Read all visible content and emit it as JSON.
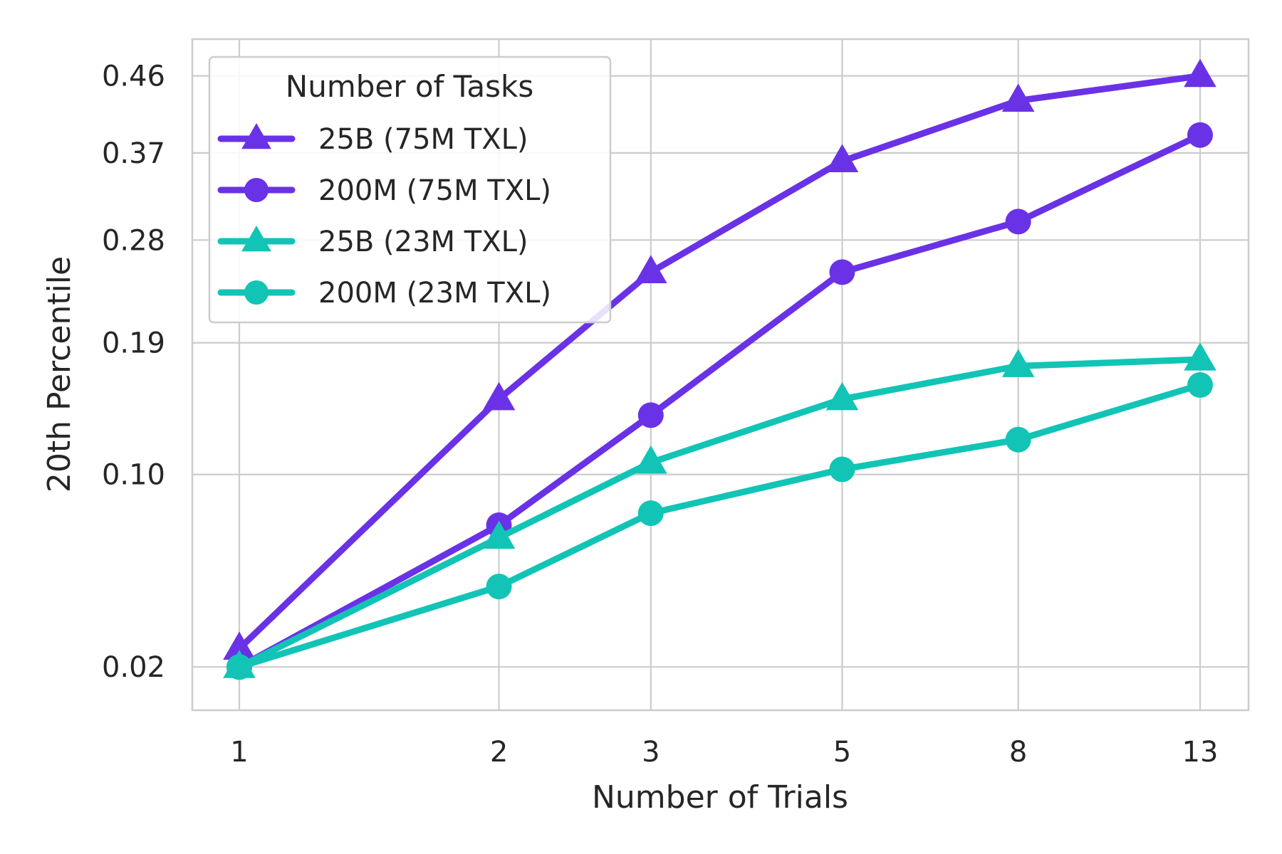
{
  "chart_data": {
    "type": "line",
    "xlabel": "Number of Trials",
    "ylabel": "20th Percentile",
    "x": [
      1,
      2,
      3,
      5,
      8,
      13
    ],
    "x_scale": "log",
    "xticks": [
      "1",
      "2",
      "3",
      "5",
      "8",
      "13"
    ],
    "yticks": [
      "0.02",
      "0.10",
      "0.19",
      "0.28",
      "0.37",
      "0.46"
    ],
    "y_scale": "sqrt",
    "ylim": [
      0.0,
      0.48
    ],
    "grid": true,
    "legend": {
      "title": "Number of Tasks",
      "placement": "top-left"
    },
    "series": [
      {
        "name": "25B (75M TXL)",
        "marker": "triangle",
        "color": "#6a32e6",
        "values": [
          0.025,
          0.148,
          0.25,
          0.361,
          0.43,
          0.46
        ]
      },
      {
        "name": "200M (75M TXL)",
        "marker": "circle",
        "color": "#6a32e6",
        "values": [
          0.02,
          0.073,
          0.137,
          0.25,
          0.298,
          0.39
        ]
      },
      {
        "name": "25B (23M TXL)",
        "marker": "triangle",
        "color": "#12c4b5",
        "values": [
          0.02,
          0.067,
          0.107,
          0.148,
          0.172,
          0.177
        ]
      },
      {
        "name": "200M (23M TXL)",
        "marker": "circle",
        "color": "#12c4b5",
        "values": [
          0.02,
          0.046,
          0.079,
          0.103,
          0.121,
          0.158
        ]
      }
    ]
  }
}
